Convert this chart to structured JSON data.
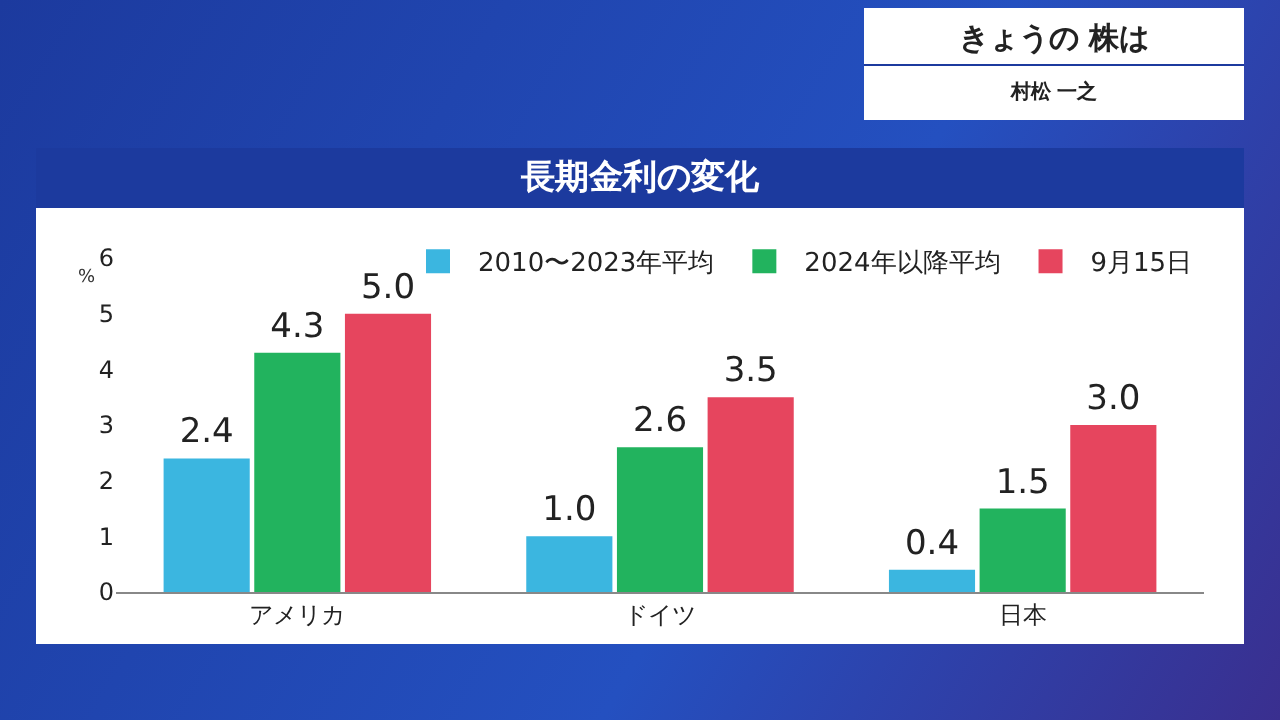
{
  "chart_data": {
    "type": "bar",
    "title": "長期金利の変化",
    "ylabel": "%",
    "annotations": [
      "きょうの 株は",
      "村松 一之"
    ],
    "categories": [
      "アメリカ",
      "ドイツ",
      "日本"
    ],
    "series": [
      {
        "name": "2010〜2023年平均",
        "color": "#3bb6e0",
        "values": [
          2.4,
          1.0,
          0.4
        ],
        "value_labels": [
          "2.4",
          "1.0",
          "0.4"
        ]
      },
      {
        "name": "2024年以降平均",
        "color": "#22b35e",
        "values": [
          4.3,
          2.6,
          1.5
        ],
        "value_labels": [
          "4.3",
          "2.6",
          "1.5"
        ]
      },
      {
        "name": "9月15日",
        "color": "#e6455e",
        "values": [
          5.0,
          3.5,
          3.0
        ],
        "value_labels": [
          "5.0",
          "3.5",
          "3.0"
        ]
      }
    ],
    "ylim": [
      0,
      6
    ],
    "yticks": [
      0,
      1,
      2,
      3,
      4,
      5,
      6
    ],
    "legend": "top right"
  }
}
